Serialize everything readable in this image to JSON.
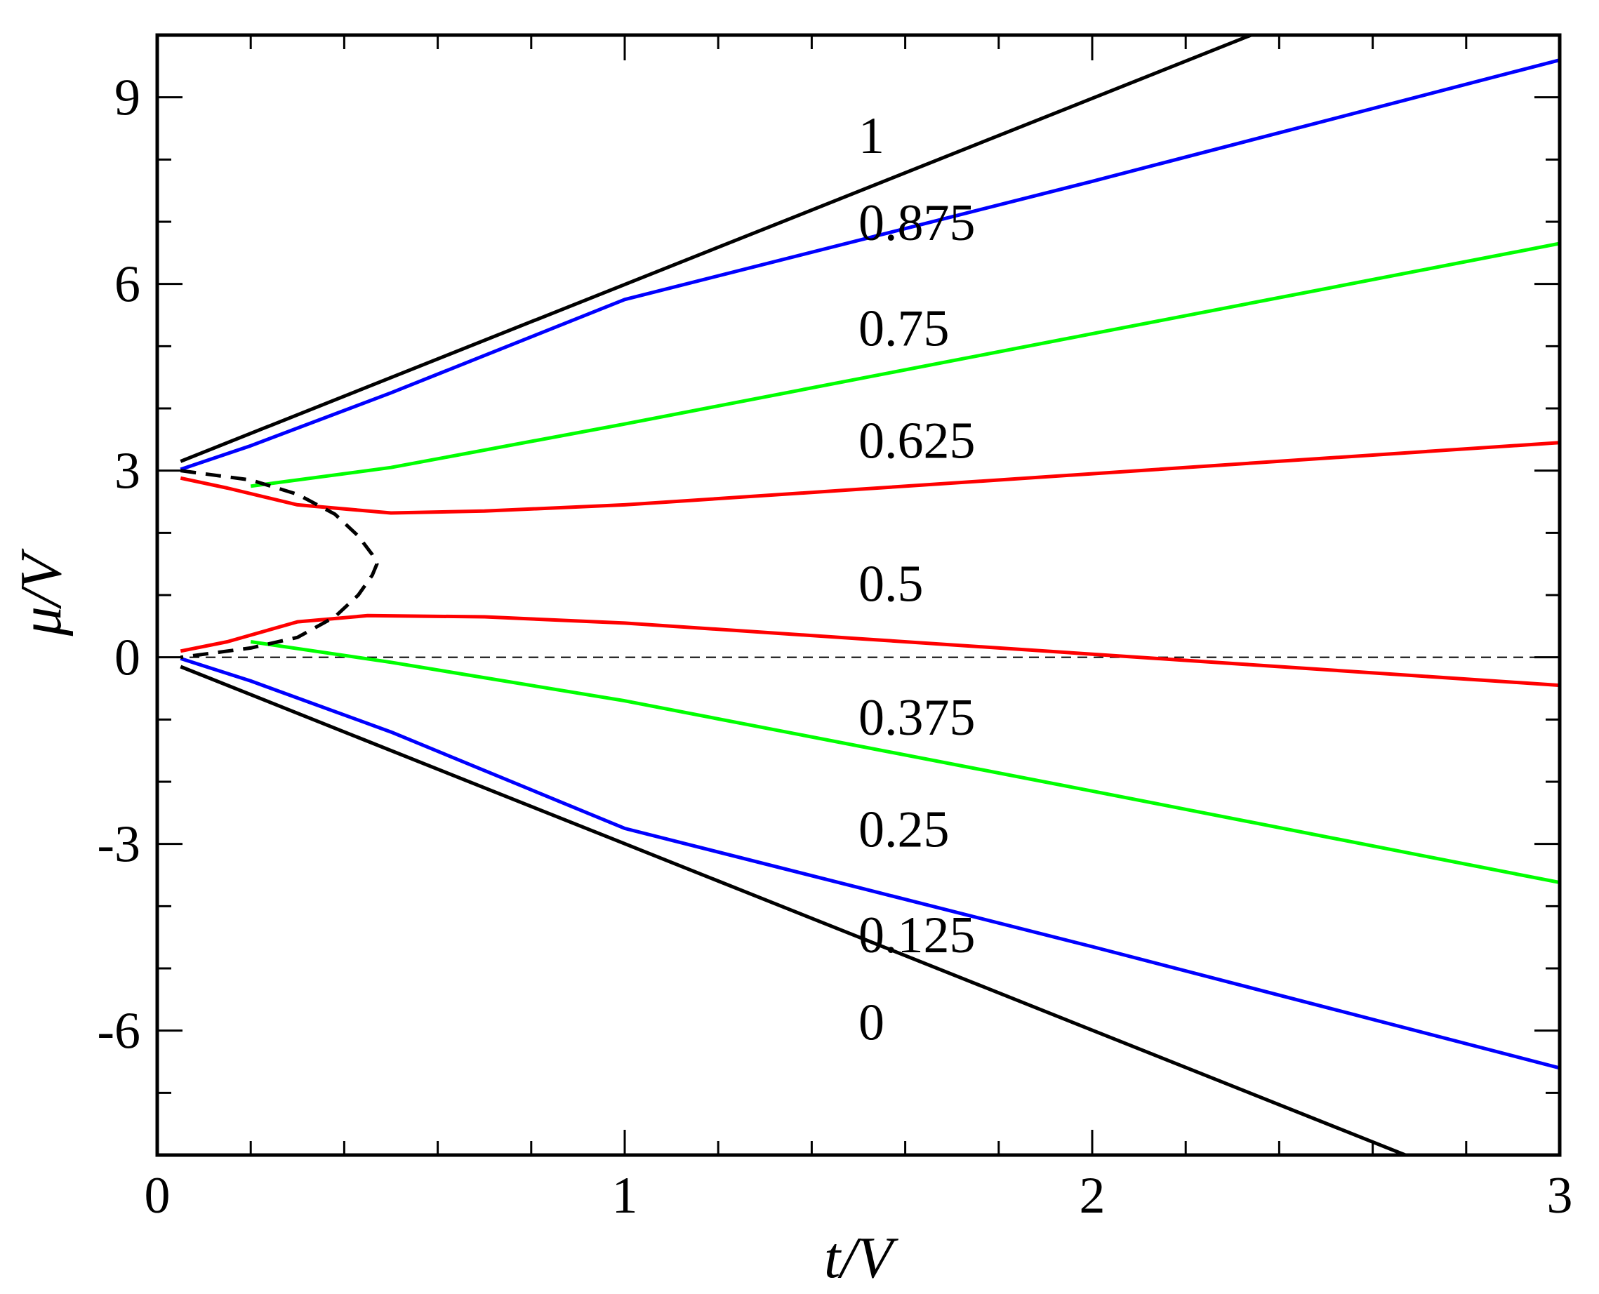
{
  "chart_data": {
    "type": "line",
    "title": "",
    "xlabel": "t/V",
    "ylabel": "μ/V",
    "xlim": [
      0,
      3
    ],
    "ylim": [
      -8,
      10
    ],
    "x_ticks": [
      0,
      1,
      2,
      3
    ],
    "x_tick_labels": [
      "0",
      "1",
      "2",
      "3"
    ],
    "x_minor_step": 0.2,
    "y_ticks": [
      -6,
      -3,
      0,
      3,
      6,
      9
    ],
    "y_tick_labels": [
      "-6",
      "-3",
      "0",
      "3",
      "6",
      "9"
    ],
    "y_minor_step": 1,
    "grid": false,
    "legend": "none",
    "zero_line": {
      "y": 0,
      "style": "dashed",
      "color": "#000000"
    },
    "colors": {
      "black": "#000000",
      "blue": "#0000ff",
      "green": "#00ff00",
      "red": "#ff0000"
    },
    "series": [
      {
        "color": "#000000",
        "style": "solid",
        "x": [
          0.05,
          2.34
        ],
        "y": [
          3.15,
          10.0
        ]
      },
      {
        "color": "#0000ff",
        "style": "solid",
        "x": [
          0.05,
          0.2,
          0.5,
          1.0,
          2.0,
          3.0
        ],
        "y": [
          3.02,
          3.4,
          4.25,
          5.75,
          7.65,
          9.6
        ]
      },
      {
        "color": "#00ff00",
        "style": "solid",
        "x": [
          0.2,
          0.5,
          1.0,
          2.0,
          3.0
        ],
        "y": [
          2.75,
          3.05,
          3.75,
          5.2,
          6.65
        ]
      },
      {
        "color": "#ff0000",
        "style": "solid",
        "x": [
          0.05,
          0.15,
          0.3,
          0.5,
          0.7,
          1.0,
          1.5,
          2.0,
          2.5,
          3.0
        ],
        "y": [
          2.88,
          2.72,
          2.45,
          2.32,
          2.35,
          2.45,
          2.7,
          2.95,
          3.2,
          3.45
        ]
      },
      {
        "color": "#ff0000",
        "style": "solid",
        "x": [
          0.05,
          0.15,
          0.3,
          0.45,
          0.7,
          1.0,
          1.5,
          2.0,
          2.5,
          3.0
        ],
        "y": [
          0.1,
          0.25,
          0.57,
          0.67,
          0.65,
          0.55,
          0.3,
          0.05,
          -0.2,
          -0.45
        ]
      },
      {
        "color": "#00ff00",
        "style": "solid",
        "x": [
          0.2,
          0.5,
          1.0,
          2.0,
          3.0
        ],
        "y": [
          0.25,
          -0.08,
          -0.7,
          -2.15,
          -3.62
        ]
      },
      {
        "color": "#0000ff",
        "style": "solid",
        "x": [
          0.05,
          0.2,
          0.5,
          1.0,
          2.0,
          3.0
        ],
        "y": [
          -0.02,
          -0.38,
          -1.2,
          -2.75,
          -4.65,
          -6.6
        ]
      },
      {
        "color": "#000000",
        "style": "solid",
        "x": [
          0.05,
          2.67
        ],
        "y": [
          -0.15,
          -8.0
        ]
      },
      {
        "color": "#000000",
        "style": "dashed",
        "x": [
          0.05,
          0.2,
          0.3,
          0.38,
          0.43,
          0.46,
          0.47,
          0.46,
          0.43,
          0.38,
          0.3,
          0.2,
          0.05
        ],
        "y": [
          3.0,
          2.85,
          2.62,
          2.3,
          1.95,
          1.65,
          1.5,
          1.32,
          1.0,
          0.65,
          0.32,
          0.15,
          0.0
        ]
      }
    ],
    "annotations": [
      {
        "text": "1",
        "x": 1.5,
        "y": 8.4
      },
      {
        "text": "0.875",
        "x": 1.5,
        "y": 7.0
      },
      {
        "text": "0.75",
        "x": 1.5,
        "y": 5.3
      },
      {
        "text": "0.625",
        "x": 1.5,
        "y": 3.5
      },
      {
        "text": "0.5",
        "x": 1.5,
        "y": 1.2
      },
      {
        "text": "0.375",
        "x": 1.5,
        "y": -0.95
      },
      {
        "text": "0.25",
        "x": 1.5,
        "y": -2.75
      },
      {
        "text": "0.125",
        "x": 1.5,
        "y": -4.45
      },
      {
        "text": "0",
        "x": 1.5,
        "y": -5.85
      }
    ]
  }
}
